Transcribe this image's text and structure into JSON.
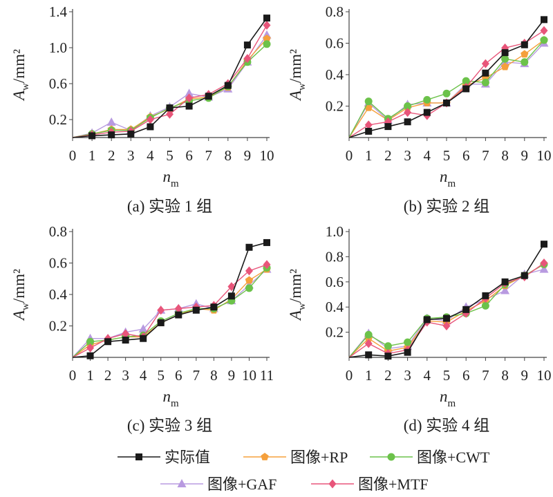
{
  "legend": [
    {
      "name": "实际值",
      "color": "#1a1a1a",
      "marker": "square"
    },
    {
      "name": "图像+RP",
      "color": "#f5a03c",
      "marker": "pentagon"
    },
    {
      "name": "图像+CWT",
      "color": "#6cc24a",
      "marker": "circle"
    },
    {
      "name": "图像+GAF",
      "color": "#b89ae0",
      "marker": "triangle"
    },
    {
      "name": "图像+MTF",
      "color": "#e8557a",
      "marker": "diamond"
    }
  ],
  "chart_data": [
    {
      "type": "line",
      "caption": "(a) 实验 1 组",
      "xlabel": "n",
      "xlabel_sub": "m",
      "ylabel": "A",
      "ylabel_sub": "w",
      "ylabel_unit": "/mm²",
      "xlim": [
        0,
        10
      ],
      "ylim": [
        0,
        1.4
      ],
      "xticks": [
        0,
        1,
        2,
        3,
        4,
        5,
        6,
        7,
        8,
        9,
        10
      ],
      "yticks": [
        0.2,
        0.6,
        1.0,
        1.4
      ],
      "ytick_labels": [
        "0.2",
        "0.6",
        "1.0",
        "1.4"
      ],
      "x": [
        0,
        1,
        2,
        3,
        4,
        5,
        6,
        7,
        8,
        9,
        10
      ],
      "series": [
        {
          "name": "实际值",
          "values": [
            0,
            0.02,
            0.03,
            0.04,
            0.12,
            0.33,
            0.35,
            0.46,
            0.58,
            1.03,
            1.33
          ]
        },
        {
          "name": "图像+RP",
          "values": [
            0,
            0.04,
            0.09,
            0.09,
            0.23,
            0.32,
            0.43,
            0.45,
            0.56,
            0.86,
            1.1
          ]
        },
        {
          "name": "图像+CWT",
          "values": [
            0,
            0.04,
            0.08,
            0.08,
            0.22,
            0.33,
            0.41,
            0.44,
            0.57,
            0.84,
            1.04
          ]
        },
        {
          "name": "图像+GAF",
          "values": [
            0,
            0.05,
            0.17,
            0.08,
            0.24,
            0.34,
            0.49,
            0.45,
            0.54,
            0.84,
            1.14
          ]
        },
        {
          "name": "图像+MTF",
          "values": [
            0,
            0.03,
            0.06,
            0.07,
            0.2,
            0.26,
            0.44,
            0.48,
            0.6,
            0.88,
            1.25
          ]
        }
      ]
    },
    {
      "type": "line",
      "caption": "(b) 实验 2 组",
      "xlabel": "n",
      "xlabel_sub": "m",
      "ylabel": "A",
      "ylabel_sub": "w",
      "ylabel_unit": "/mm²",
      "xlim": [
        0,
        10
      ],
      "ylim": [
        0,
        0.8
      ],
      "xticks": [
        0,
        1,
        2,
        3,
        4,
        5,
        6,
        7,
        8,
        9,
        10
      ],
      "yticks": [
        0.2,
        0.4,
        0.6,
        0.8
      ],
      "ytick_labels": [
        "0.2",
        "0.4",
        "0.6",
        "0.8"
      ],
      "x": [
        0,
        1,
        2,
        3,
        4,
        5,
        6,
        7,
        8,
        9,
        10
      ],
      "series": [
        {
          "name": "实际值",
          "values": [
            0,
            0.04,
            0.07,
            0.1,
            0.16,
            0.22,
            0.31,
            0.41,
            0.54,
            0.59,
            0.75
          ]
        },
        {
          "name": "图像+RP",
          "values": [
            0,
            0.19,
            0.11,
            0.19,
            0.22,
            0.22,
            0.33,
            0.38,
            0.45,
            0.53,
            0.62
          ]
        },
        {
          "name": "图像+CWT",
          "values": [
            0,
            0.23,
            0.12,
            0.2,
            0.24,
            0.28,
            0.36,
            0.35,
            0.5,
            0.48,
            0.62
          ]
        },
        {
          "name": "图像+GAF",
          "values": [
            0,
            0.22,
            0.11,
            0.21,
            0.22,
            0.22,
            0.34,
            0.34,
            0.48,
            0.47,
            0.6
          ]
        },
        {
          "name": "图像+MTF",
          "values": [
            0,
            0.08,
            0.1,
            0.16,
            0.14,
            0.22,
            0.32,
            0.47,
            0.57,
            0.6,
            0.68
          ]
        }
      ]
    },
    {
      "type": "line",
      "caption": "(c) 实验 3 组",
      "xlabel": "n",
      "xlabel_sub": "m",
      "ylabel": "A",
      "ylabel_sub": "w",
      "ylabel_unit": "/mm²",
      "xlim": [
        0,
        11
      ],
      "ylim": [
        0,
        0.8
      ],
      "xticks": [
        0,
        1,
        2,
        3,
        4,
        5,
        6,
        7,
        8,
        9,
        10,
        11
      ],
      "yticks": [
        0.2,
        0.4,
        0.6,
        0.8
      ],
      "ytick_labels": [
        "0.2",
        "0.4",
        "0.6",
        "0.8"
      ],
      "x": [
        0,
        1,
        2,
        3,
        4,
        5,
        6,
        7,
        8,
        9,
        10,
        11
      ],
      "series": [
        {
          "name": "实际值",
          "values": [
            0,
            0.01,
            0.1,
            0.11,
            0.12,
            0.22,
            0.27,
            0.3,
            0.32,
            0.39,
            0.7,
            0.73
          ]
        },
        {
          "name": "图像+RP",
          "values": [
            0,
            0.08,
            0.11,
            0.13,
            0.13,
            0.22,
            0.27,
            0.31,
            0.3,
            0.37,
            0.49,
            0.56
          ]
        },
        {
          "name": "图像+CWT",
          "values": [
            0,
            0.1,
            0.11,
            0.13,
            0.14,
            0.23,
            0.28,
            0.31,
            0.31,
            0.36,
            0.44,
            0.57
          ]
        },
        {
          "name": "图像+GAF",
          "values": [
            0,
            0.12,
            0.12,
            0.16,
            0.18,
            0.3,
            0.31,
            0.34,
            0.31,
            0.36,
            0.46,
            0.56
          ]
        },
        {
          "name": "图像+MTF",
          "values": [
            0,
            0.06,
            0.12,
            0.15,
            0.13,
            0.3,
            0.31,
            0.32,
            0.33,
            0.45,
            0.55,
            0.59
          ]
        }
      ]
    },
    {
      "type": "line",
      "caption": "(d) 实验 4 组",
      "xlabel": "n",
      "xlabel_sub": "m",
      "ylabel": "A",
      "ylabel_sub": "w",
      "ylabel_unit": "/mm²",
      "xlim": [
        0,
        10
      ],
      "ylim": [
        0,
        1.0
      ],
      "xticks": [
        0,
        1,
        2,
        3,
        4,
        5,
        6,
        7,
        8,
        9,
        10
      ],
      "yticks": [
        0.2,
        0.4,
        0.6,
        0.8,
        1.0
      ],
      "ytick_labels": [
        "0.2",
        "0.4",
        "0.6",
        "0.8",
        "1.0"
      ],
      "x": [
        0,
        1,
        2,
        3,
        4,
        5,
        6,
        7,
        8,
        9,
        10
      ],
      "series": [
        {
          "name": "实际值",
          "values": [
            0,
            0.02,
            0.01,
            0.04,
            0.3,
            0.31,
            0.38,
            0.49,
            0.6,
            0.65,
            0.9
          ]
        },
        {
          "name": "图像+RP",
          "values": [
            0,
            0.15,
            0.05,
            0.08,
            0.29,
            0.28,
            0.37,
            0.45,
            0.57,
            0.65,
            0.74
          ]
        },
        {
          "name": "图像+CWT",
          "values": [
            0,
            0.18,
            0.09,
            0.12,
            0.31,
            0.32,
            0.35,
            0.41,
            0.58,
            0.65,
            0.74
          ]
        },
        {
          "name": "图像+GAF",
          "values": [
            0,
            0.19,
            0.07,
            0.09,
            0.31,
            0.29,
            0.4,
            0.46,
            0.53,
            0.66,
            0.7
          ]
        },
        {
          "name": "图像+MTF",
          "values": [
            0,
            0.11,
            0.03,
            0.06,
            0.28,
            0.25,
            0.35,
            0.47,
            0.59,
            0.64,
            0.75
          ]
        }
      ]
    }
  ]
}
